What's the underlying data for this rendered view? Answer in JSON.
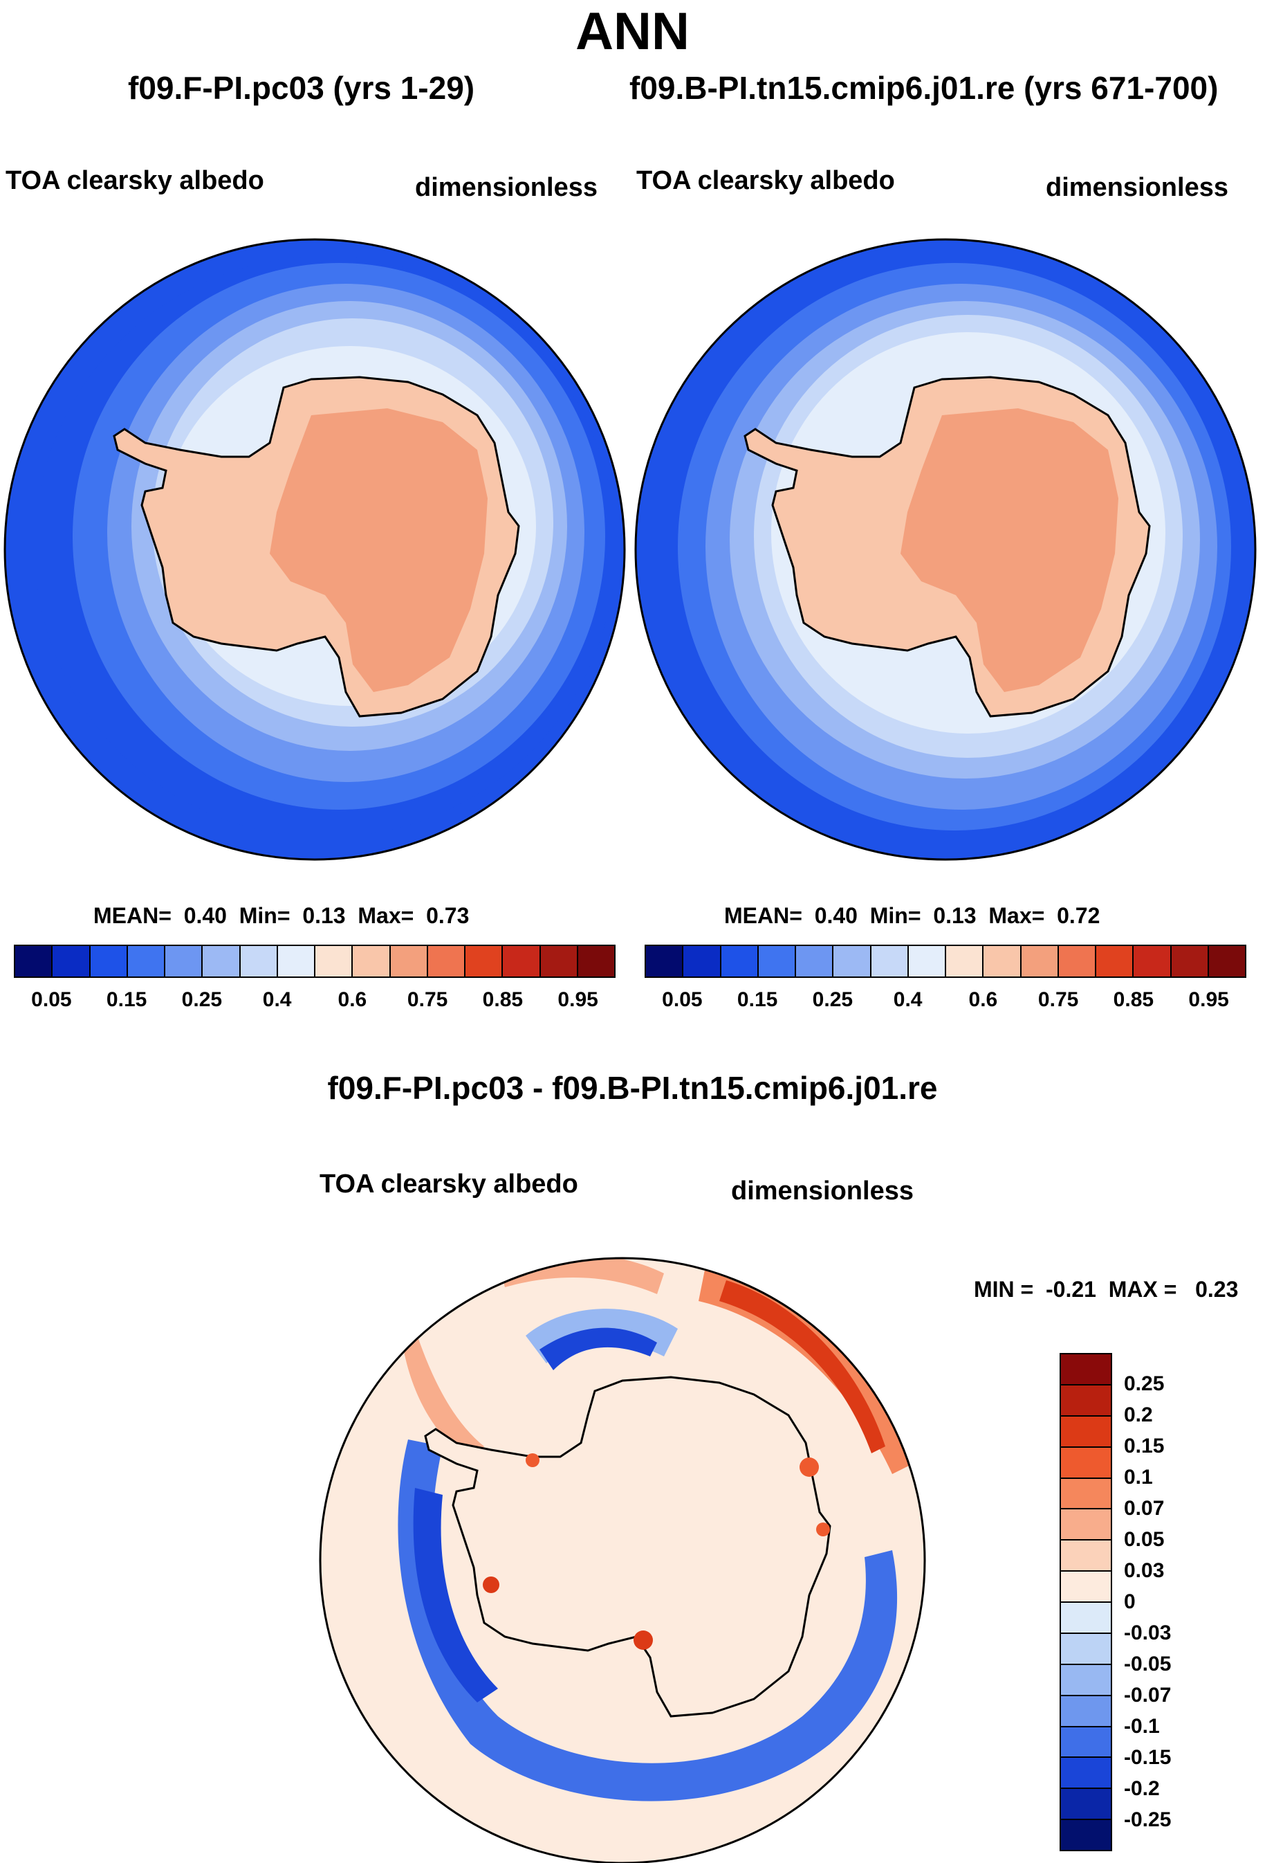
{
  "season": "ANN",
  "panels": [
    {
      "case": "f09.F-PI.pc03 (yrs 1-29)",
      "variable": "TOA clearsky albedo",
      "units": "dimensionless",
      "stats": {
        "mean_label": "MEAN=",
        "mean": "0.40",
        "min_label": "Min=",
        "min": "0.13",
        "max_label": "Max=",
        "max": "0.73"
      }
    },
    {
      "case": "f09.B-PI.tn15.cmip6.j01.re (yrs 671-700)",
      "variable": "TOA clearsky albedo",
      "units": "dimensionless",
      "stats": {
        "mean_label": "MEAN=",
        "mean": "0.40",
        "min_label": "Min=",
        "min": "0.13",
        "max_label": "Max=",
        "max": "0.72"
      }
    }
  ],
  "diff_panel": {
    "title": "f09.F-PI.pc03 - f09.B-PI.tn15.cmip6.j01.re",
    "variable": "TOA clearsky albedo",
    "units": "dimensionless",
    "minmax": {
      "min_label": "MIN =",
      "min": "-0.21",
      "max_label": "MAX =",
      "max": "0.23"
    }
  },
  "chart_data": [
    {
      "type": "polar-contour-map",
      "projection": "south polar stereographic",
      "title": "f09.F-PI.pc03 (yrs 1-29)",
      "variable": "TOA clearsky albedo",
      "units": "dimensionless",
      "mean": 0.4,
      "min": 0.13,
      "max": 0.73,
      "colorbar_levels": [
        "0.05",
        "0.15",
        "0.25",
        "0.4",
        "0.6",
        "0.75",
        "0.85",
        "0.95"
      ],
      "colorbar_colors": [
        "#020a6e",
        "#0a2cc4",
        "#1e52e8",
        "#3f74f0",
        "#6d96f2",
        "#9cb9f4",
        "#c7d9f8",
        "#e4eefb",
        "#fbe3d2",
        "#f9c6aa",
        "#f3a07d",
        "#ef7450",
        "#e0421f",
        "#c8281a",
        "#a41a12",
        "#7a0a0a"
      ],
      "colorbar_colors_note": "16 filled swatches"
    },
    {
      "type": "polar-contour-map",
      "projection": "south polar stereographic",
      "title": "f09.B-PI.tn15.cmip6.j01.re (yrs 671-700)",
      "variable": "TOA clearsky albedo",
      "units": "dimensionless",
      "mean": 0.4,
      "min": 0.13,
      "max": 0.72,
      "colorbar_levels": [
        "0.05",
        "0.15",
        "0.25",
        "0.4",
        "0.6",
        "0.75",
        "0.85",
        "0.95"
      ]
    },
    {
      "type": "polar-contour-map",
      "projection": "south polar stereographic",
      "title": "f09.F-PI.pc03 - f09.B-PI.tn15.cmip6.j01.re",
      "variable": "TOA clearsky albedo",
      "units": "dimensionless",
      "min": -0.21,
      "max": 0.23,
      "colorbar_levels": [
        "0.25",
        "0.2",
        "0.15",
        "0.1",
        "0.07",
        "0.05",
        "0.03",
        "0",
        "-0.03",
        "-0.05",
        "-0.07",
        "-0.1",
        "-0.15",
        "-0.2",
        "-0.25"
      ],
      "colorbar_colors": [
        "#8a0a0a",
        "#b8200f",
        "#dc3a16",
        "#ee5a2e",
        "#f5875c",
        "#f8ad8c",
        "#fbd2ba",
        "#fdebde",
        "#dceaf9",
        "#bcd3f5",
        "#98b8f2",
        "#6e97ee",
        "#3f6fe8",
        "#1a45d8",
        "#0a26a8",
        "#02106e"
      ]
    }
  ],
  "colors": {
    "seq": [
      "#020a6e",
      "#0a2cc4",
      "#1e52e8",
      "#3f74f0",
      "#6d96f2",
      "#9cb9f4",
      "#c7d9f8",
      "#e4eefb",
      "#fbe3d2",
      "#f9c6aa",
      "#f3a07d",
      "#ef7450",
      "#e0421f",
      "#c8281a",
      "#a41a12",
      "#7a0a0a"
    ],
    "div": [
      "#8a0a0a",
      "#b8200f",
      "#dc3a16",
      "#ee5a2e",
      "#f5875c",
      "#f8ad8c",
      "#fbd2ba",
      "#fdebde",
      "#dceaf9",
      "#bcd3f5",
      "#98b8f2",
      "#6e97ee",
      "#3f6fe8",
      "#1a45d8",
      "#0a26a8",
      "#02106e"
    ]
  }
}
